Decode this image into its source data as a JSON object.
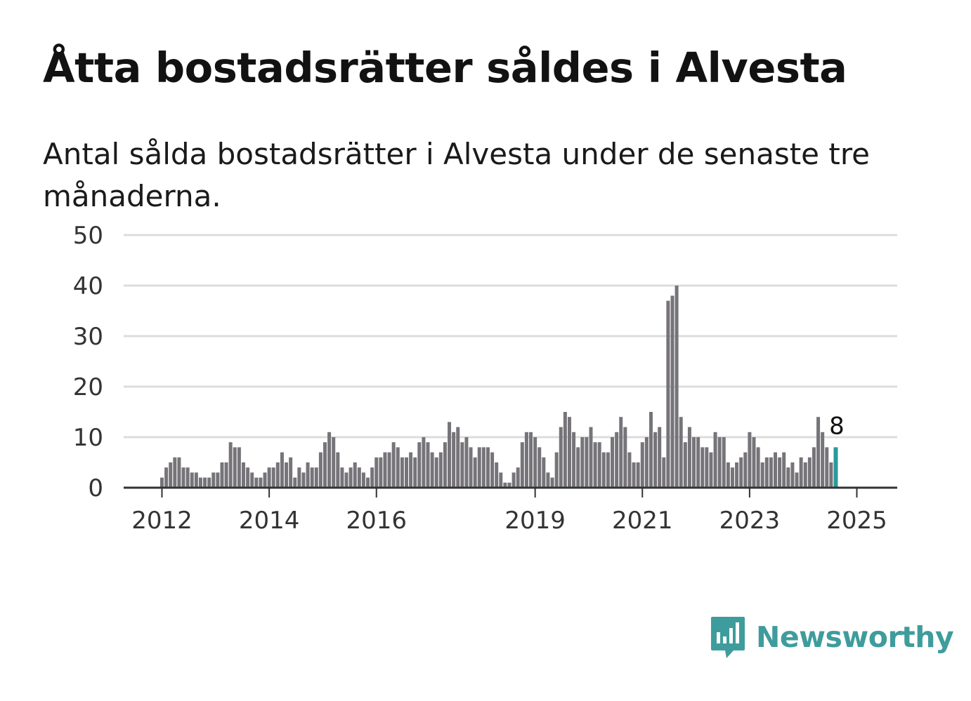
{
  "title": "Åtta bostadsrätter såldes i Alvesta",
  "subtitle": "Antal sålda bostadsrätter i Alvesta under de senaste tre månaderna.",
  "brand": {
    "name": "Newsworthy",
    "icon": "newsworthy-logo-icon",
    "color": "#3f9c9c"
  },
  "chart_data": {
    "type": "bar",
    "ylim": [
      0,
      50
    ],
    "yticks": [
      0,
      10,
      20,
      30,
      40,
      50
    ],
    "xticks": [
      {
        "label": "2012",
        "bar_index": 0
      },
      {
        "label": "2014",
        "bar_index": 25
      },
      {
        "label": "2016",
        "bar_index": 50
      },
      {
        "label": "2019",
        "bar_index": 87
      },
      {
        "label": "2021",
        "bar_index": 112
      },
      {
        "label": "2023",
        "bar_index": 137
      },
      {
        "label": "2025",
        "bar_index": 162
      }
    ],
    "grid": true,
    "bar_color": "#767479",
    "highlight_color": "#2a9a9a",
    "highlight_label": "8",
    "values": [
      2,
      4,
      5,
      6,
      6,
      4,
      4,
      3,
      3,
      2,
      2,
      2,
      3,
      3,
      5,
      5,
      9,
      8,
      8,
      5,
      4,
      3,
      2,
      2,
      3,
      4,
      4,
      5,
      7,
      5,
      6,
      2,
      4,
      3,
      5,
      4,
      4,
      7,
      9,
      11,
      10,
      7,
      4,
      3,
      4,
      5,
      4,
      3,
      2,
      4,
      6,
      6,
      7,
      7,
      9,
      8,
      6,
      6,
      7,
      6,
      9,
      10,
      9,
      7,
      6,
      7,
      9,
      13,
      11,
      12,
      9,
      10,
      8,
      6,
      8,
      8,
      8,
      7,
      5,
      3,
      1,
      1,
      3,
      4,
      9,
      11,
      11,
      10,
      8,
      6,
      3,
      2,
      7,
      12,
      15,
      14,
      11,
      8,
      10,
      10,
      12,
      9,
      9,
      7,
      7,
      10,
      11,
      14,
      12,
      7,
      5,
      5,
      9,
      10,
      15,
      11,
      12,
      6,
      37,
      38,
      40,
      14,
      9,
      12,
      10,
      10,
      8,
      8,
      7,
      11,
      10,
      10,
      5,
      4,
      5,
      6,
      7,
      11,
      10,
      8,
      5,
      6,
      6,
      7,
      6,
      7,
      4,
      5,
      3,
      6,
      5,
      6,
      8,
      14,
      11,
      8,
      5,
      8
    ]
  }
}
